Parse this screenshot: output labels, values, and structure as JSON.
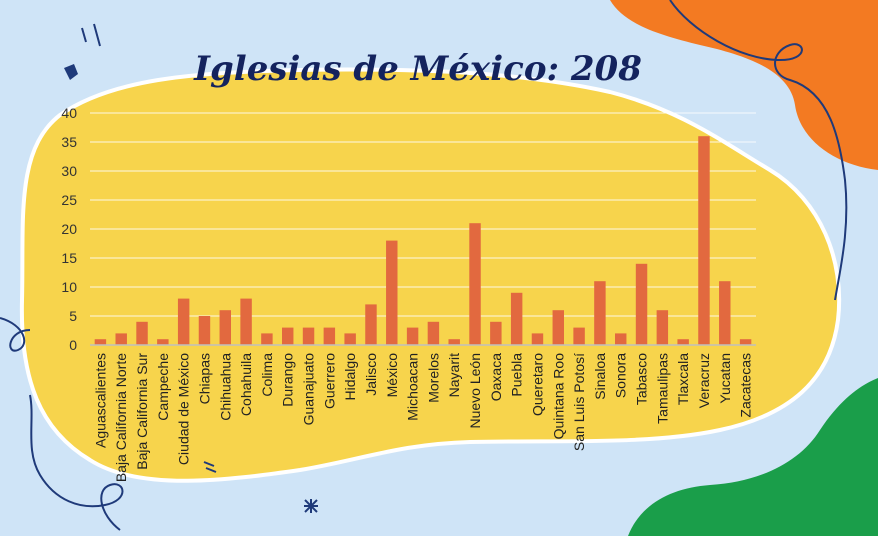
{
  "colors": {
    "background": "#cfe4f7",
    "blob": "#f7d44c",
    "bar": "#e2693f",
    "title": "#14235e",
    "orange_shape": "#f37a22",
    "green_shape": "#1a9e4a",
    "doodle": "#1f3a7a"
  },
  "chart_data": {
    "type": "bar",
    "title": "Iglesias de México: 208",
    "xlabel": "",
    "ylabel": "",
    "ylim": [
      0,
      40
    ],
    "yticks": [
      0,
      5,
      10,
      15,
      20,
      25,
      30,
      35,
      40
    ],
    "grid": true,
    "categories": [
      "Aguascalientes",
      "Baja California Norte",
      "Baja California Sur",
      "Campeche",
      "Ciudad de México",
      "Chiapas",
      "Chihuahua",
      "Cohahuila",
      "Colima",
      "Durango",
      "Guanajuato",
      "Guerrero",
      "Hidalgo",
      "Jalisco",
      "México",
      "Michoacan",
      "Morelos",
      "Nayarit",
      "Nuevo León",
      "Oaxaca",
      "Puebla",
      "Queretaro",
      "Quintana Roo",
      "San Luis Potosí",
      "Sinaloa",
      "Sonora",
      "Tabasco",
      "Tamaulipas",
      "Tlaxcala",
      "Veracruz",
      "Yucatan",
      "Zacatecas"
    ],
    "values": [
      1,
      2,
      4,
      1,
      8,
      5,
      6,
      8,
      2,
      3,
      3,
      3,
      2,
      7,
      18,
      3,
      4,
      1,
      21,
      4,
      9,
      2,
      6,
      3,
      11,
      2,
      14,
      6,
      1,
      36,
      11,
      1
    ]
  }
}
